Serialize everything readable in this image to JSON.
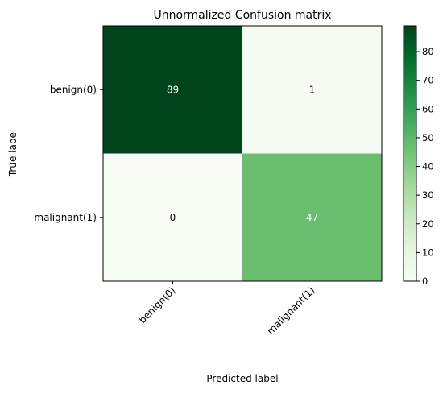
{
  "chart_data": {
    "type": "heatmap",
    "title": "Unnormalized Confusion matrix",
    "xlabel": "Predicted label",
    "ylabel": "True label",
    "x_categories": [
      "benign(0)",
      "malignant(1)"
    ],
    "y_categories": [
      "benign(0)",
      "malignant(1)"
    ],
    "values": [
      [
        89,
        1
      ],
      [
        0,
        47
      ]
    ],
    "colormap": "Greens",
    "colorbar": {
      "min": 0,
      "max": 89,
      "ticks": [
        0,
        10,
        20,
        30,
        40,
        50,
        60,
        70,
        80
      ]
    },
    "colors": {
      "high": "#00441b",
      "low": "#f7fcf5",
      "text_on_dark": "#ffffff",
      "text_on_light": "#000000"
    }
  }
}
